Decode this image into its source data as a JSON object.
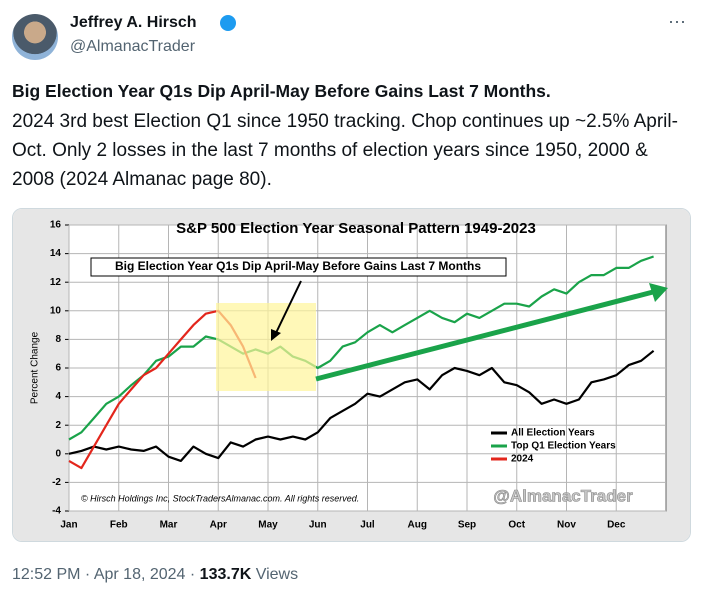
{
  "tweet": {
    "name": "Jeffrey A. Hirsch",
    "handle": "@AlmanacTrader",
    "headline": "Big Election Year Q1s Dip April-May Before Gains Last 7 Months.",
    "body": "2024 3rd best Election Q1 since 1950 tracking. Chop continues up ~2.5% April-Oct. Only 2 losses in the last 7 months of election years since 1950, 2000 & 2008 (2024 Almanac page 80).",
    "timestamp": "12:52 PM · Apr 18, 2024 · ",
    "views": "133.7K",
    "views_label": "Views"
  },
  "chart_data": {
    "type": "line",
    "title": "S&P 500 Election Year Seasonal Pattern 1949-2023",
    "y_label": "Percent Change",
    "annotation": "Big Election Year Q1s Dip April-May Before Gains Last 7 Months",
    "copyright": "© Hirsch Holdings Inc, StockTradersAlmanac.com. All rights reserved.",
    "watermark": "@AlmanacTrader",
    "categories": [
      "Jan",
      null,
      null,
      null,
      "Feb",
      null,
      null,
      null,
      "Mar",
      null,
      null,
      null,
      "Apr",
      null,
      null,
      null,
      "May",
      null,
      null,
      null,
      "Jun",
      null,
      null,
      null,
      "Jul",
      null,
      null,
      null,
      "Aug",
      null,
      null,
      null,
      "Sep",
      null,
      null,
      null,
      "Oct",
      null,
      null,
      null,
      "Nov",
      null,
      null,
      null,
      "Dec",
      null,
      null,
      null
    ],
    "ylim": [
      -4,
      16
    ],
    "yticks": [
      -4,
      -2,
      0,
      2,
      4,
      6,
      8,
      10,
      12,
      14,
      16
    ],
    "grid": true,
    "series": [
      {
        "name": "All Election Years",
        "color": "#000000",
        "values": [
          0,
          0.2,
          0.5,
          0.3,
          0.5,
          0.3,
          0.2,
          0.5,
          -0.2,
          -0.5,
          0.5,
          0,
          -0.3,
          0.8,
          0.5,
          1,
          1.2,
          1,
          1.2,
          1,
          1.5,
          2.5,
          3,
          3.5,
          4.2,
          4,
          4.5,
          5,
          5.2,
          4.5,
          5.5,
          6,
          5.8,
          5.5,
          6,
          5,
          4.8,
          4.3,
          3.5,
          3.8,
          3.5,
          3.8,
          5,
          5.2,
          5.5,
          6.2,
          6.5,
          7.2
        ]
      },
      {
        "name": "Top Q1 Election Years",
        "color": "#1aa34a",
        "values": [
          1,
          1.5,
          2.5,
          3.5,
          4,
          4.8,
          5.5,
          6.5,
          6.8,
          7.5,
          7.5,
          8.2,
          8,
          7.5,
          7,
          7.3,
          7,
          7.5,
          6.8,
          6.5,
          6,
          6.5,
          7.5,
          7.8,
          8.5,
          9,
          8.5,
          9,
          9.5,
          10,
          9.5,
          9.2,
          9.8,
          9.5,
          10,
          10.5,
          10.5,
          10.3,
          11,
          11.5,
          11.2,
          12,
          12.5,
          12.5,
          13,
          13,
          13.5,
          13.8
        ]
      },
      {
        "name": "2024",
        "color": "#e3261c",
        "values": [
          -0.5,
          -1,
          0.5,
          2,
          3.5,
          4.5,
          5.5,
          6,
          7,
          8,
          9,
          9.8,
          10,
          9,
          7.5,
          5.3,
          null,
          null,
          null,
          null,
          null,
          null,
          null,
          null,
          null,
          null,
          null,
          null,
          null,
          null,
          null,
          null,
          null,
          null,
          null,
          null,
          null,
          null,
          null,
          null,
          null,
          null,
          null,
          null,
          null,
          null,
          null,
          null
        ]
      }
    ]
  }
}
